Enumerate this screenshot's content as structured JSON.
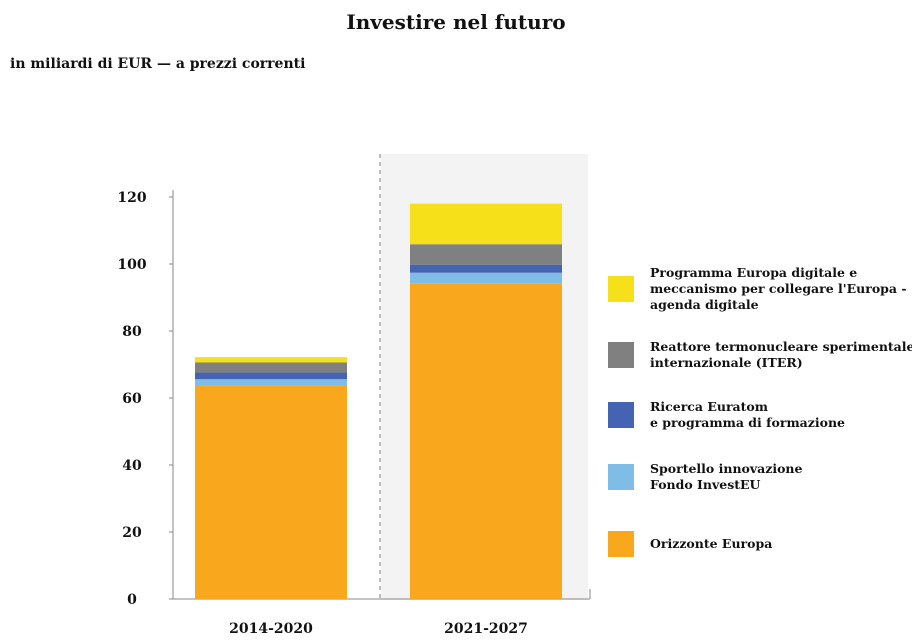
{
  "chart_data": {
    "type": "bar",
    "stacked": true,
    "title": "Investire nel futuro",
    "subtitle": "in miliardi di EUR — a prezzi correnti",
    "categories": [
      "2014-2020",
      "2021-2027"
    ],
    "ylim": [
      0,
      120
    ],
    "yticks": [
      0,
      20,
      40,
      60,
      80,
      100,
      120
    ],
    "legend_position": "right",
    "highlighted_category": "2021-2027",
    "series": [
      {
        "name": "Orizzonte Europa",
        "color": "#f9a81e",
        "values": [
          63.6,
          94.1
        ]
      },
      {
        "name": "Sportello innovazione\nFondo InvestEU",
        "color": "#7fbde6",
        "values": [
          2.0,
          3.3
        ]
      },
      {
        "name": "Ricerca Euratom\ne programma di formazione",
        "color": "#4463b2",
        "values": [
          2.0,
          2.4
        ]
      },
      {
        "name": "Reattore termonucleare sperimentale\ninternazionale (ITER)",
        "color": "#808080",
        "values": [
          3.0,
          6.1
        ]
      },
      {
        "name": "Programma Europa digitale e\nmeccanismo per collegare l'Europa -\nagenda digitale",
        "color": "#f5e01a",
        "values": [
          1.6,
          12.1
        ]
      }
    ],
    "legend_order": [
      4,
      3,
      2,
      1,
      0
    ]
  }
}
